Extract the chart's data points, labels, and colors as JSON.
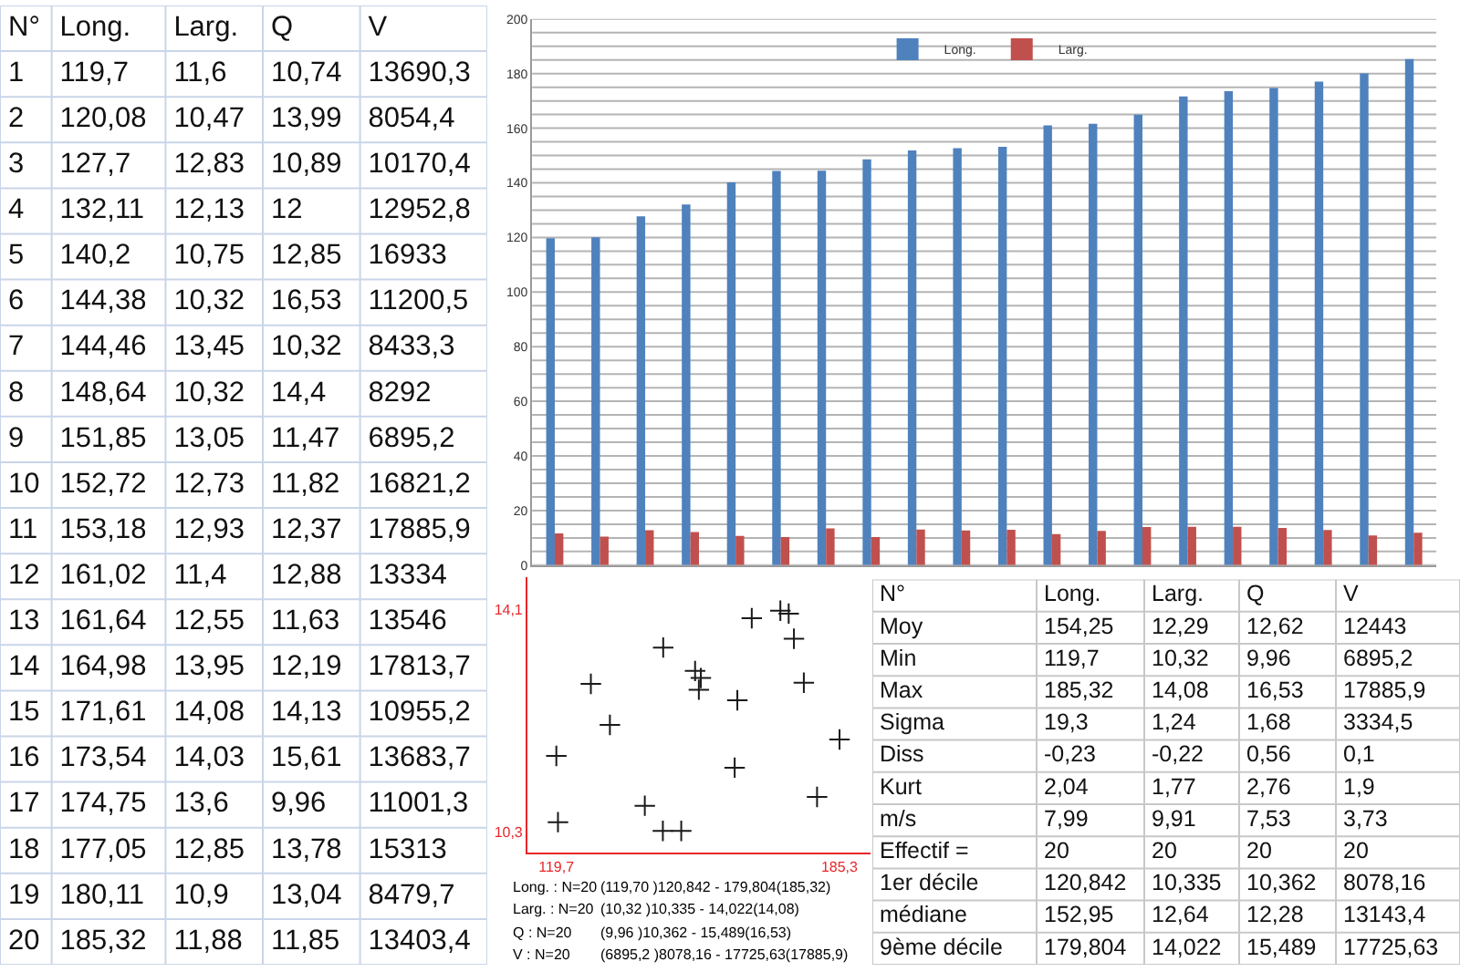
{
  "chart_data": [
    {
      "type": "heatmap",
      "ylabel": "N°",
      "categories": [
        "Long.",
        "Larg.",
        "Q",
        "V"
      ],
      "y_categories": [
        "1",
        "2",
        "3",
        "4",
        "5",
        "6",
        "7",
        "8",
        "9",
        "10",
        "11",
        "12",
        "13",
        "14",
        "15",
        "16",
        "17",
        "18",
        "19",
        "20"
      ],
      "cells": [
        [
          119.7,
          11.6,
          10.74,
          13690.3
        ],
        [
          120.08,
          10.47,
          13.99,
          8054.4
        ],
        [
          127.7,
          12.83,
          10.89,
          10170.4
        ],
        [
          132.11,
          12.13,
          12,
          12952.8
        ],
        [
          140.2,
          10.75,
          12.85,
          16933
        ],
        [
          144.38,
          10.32,
          16.53,
          11200.5
        ],
        [
          144.46,
          13.45,
          10.32,
          8433.3
        ],
        [
          148.64,
          10.32,
          14.4,
          8292
        ],
        [
          151.85,
          13.05,
          11.47,
          6895.2
        ],
        [
          152.72,
          12.73,
          11.82,
          16821.2
        ],
        [
          153.18,
          12.93,
          12.37,
          17885.9
        ],
        [
          161.02,
          11.4,
          12.88,
          13334
        ],
        [
          161.64,
          12.55,
          11.63,
          13546
        ],
        [
          164.98,
          13.95,
          12.19,
          17813.7
        ],
        [
          171.61,
          14.08,
          14.13,
          10955.2
        ],
        [
          173.54,
          14.03,
          15.61,
          13683.7
        ],
        [
          174.75,
          13.6,
          9.96,
          11001.3
        ],
        [
          177.05,
          12.85,
          13.78,
          15313
        ],
        [
          180.11,
          10.9,
          13.04,
          8479.7
        ],
        [
          185.32,
          11.88,
          11.85,
          13403.4
        ]
      ],
      "cell_labels": [
        [
          "119,7",
          "11,6",
          "10,74",
          "13690,3"
        ],
        [
          "120,08",
          "10,47",
          "13,99",
          "8054,4"
        ],
        [
          "127,7",
          "12,83",
          "10,89",
          "10170,4"
        ],
        [
          "132,11",
          "12,13",
          "12",
          "12952,8"
        ],
        [
          "140,2",
          "10,75",
          "12,85",
          "16933"
        ],
        [
          "144,38",
          "10,32",
          "16,53",
          "11200,5"
        ],
        [
          "144,46",
          "13,45",
          "10,32",
          "8433,3"
        ],
        [
          "148,64",
          "10,32",
          "14,4",
          "8292"
        ],
        [
          "151,85",
          "13,05",
          "11,47",
          "6895,2"
        ],
        [
          "152,72",
          "12,73",
          "11,82",
          "16821,2"
        ],
        [
          "153,18",
          "12,93",
          "12,37",
          "17885,9"
        ],
        [
          "161,02",
          "11,4",
          "12,88",
          "13334"
        ],
        [
          "161,64",
          "12,55",
          "11,63",
          "13546"
        ],
        [
          "164,98",
          "13,95",
          "12,19",
          "17813,7"
        ],
        [
          "171,61",
          "14,08",
          "14,13",
          "10955,2"
        ],
        [
          "173,54",
          "14,03",
          "15,61",
          "13683,7"
        ],
        [
          "174,75",
          "13,6",
          "9,96",
          "11001,3"
        ],
        [
          "177,05",
          "12,85",
          "13,78",
          "15313"
        ],
        [
          "180,11",
          "10,9",
          "13,04",
          "8479,7"
        ],
        [
          "185,32",
          "11,88",
          "11,85",
          "13403,4"
        ]
      ]
    },
    {
      "type": "bar",
      "categories": [
        null,
        null,
        null,
        null,
        null,
        null,
        null,
        null,
        null,
        null,
        null,
        null,
        null,
        null,
        null,
        null,
        null,
        null,
        null,
        null
      ],
      "series": [
        {
          "name": "Long.",
          "color": "#4f81bd",
          "values": [
            119.7,
            120.08,
            127.7,
            132.11,
            140.2,
            144.38,
            144.46,
            148.64,
            151.85,
            152.72,
            153.18,
            161.02,
            161.64,
            164.98,
            171.61,
            173.54,
            174.75,
            177.05,
            180.11,
            185.32
          ]
        },
        {
          "name": "Larg.",
          "color": "#c0504d",
          "values": [
            11.6,
            10.47,
            12.83,
            12.13,
            10.75,
            10.32,
            13.45,
            10.32,
            13.05,
            12.73,
            12.93,
            11.4,
            12.55,
            13.95,
            14.08,
            14.03,
            13.6,
            12.85,
            10.9,
            11.88
          ]
        }
      ],
      "ylim": [
        0,
        200
      ],
      "yticks": [
        0,
        {
          "value": 5,
          "label": null
        },
        {
          "value": 10,
          "label": null
        },
        {
          "value": 15,
          "label": null
        },
        20,
        {
          "value": 25,
          "label": null
        },
        {
          "value": 30,
          "label": null
        },
        {
          "value": 35,
          "label": null
        },
        40,
        {
          "value": 45,
          "label": null
        },
        {
          "value": 50,
          "label": null
        },
        {
          "value": 55,
          "label": null
        },
        60,
        {
          "value": 65,
          "label": null
        },
        {
          "value": 70,
          "label": null
        },
        {
          "value": 75,
          "label": null
        },
        80,
        {
          "value": 85,
          "label": null
        },
        {
          "value": 90,
          "label": null
        },
        {
          "value": 95,
          "label": null
        },
        100,
        {
          "value": 105,
          "label": null
        },
        {
          "value": 110,
          "label": null
        },
        {
          "value": 115,
          "label": null
        },
        120,
        {
          "value": 125,
          "label": null
        },
        {
          "value": 130,
          "label": null
        },
        {
          "value": 135,
          "label": null
        },
        140,
        {
          "value": 145,
          "label": null
        },
        {
          "value": 150,
          "label": null
        },
        {
          "value": 155,
          "label": null
        },
        160,
        {
          "value": 165,
          "label": null
        },
        {
          "value": 170,
          "label": null
        },
        {
          "value": 175,
          "label": null
        },
        180,
        {
          "value": 185,
          "label": null
        },
        {
          "value": 190,
          "label": null
        },
        {
          "value": 195,
          "label": null
        },
        200
      ],
      "grid": "y",
      "legend": "top"
    },
    {
      "type": "scatter",
      "x": [
        119.7,
        120.08,
        127.7,
        132.11,
        140.2,
        144.38,
        144.46,
        148.64,
        151.85,
        152.72,
        153.18,
        161.02,
        161.64,
        164.98,
        171.61,
        173.54,
        174.75,
        177.05,
        180.11,
        185.32
      ],
      "values": [
        11.6,
        10.47,
        12.83,
        12.13,
        10.75,
        10.32,
        13.45,
        10.32,
        13.05,
        12.73,
        12.93,
        11.4,
        12.55,
        13.95,
        14.08,
        14.03,
        13.6,
        12.85,
        10.9,
        11.88
      ],
      "color": "#1a1a1a",
      "marker": "cross",
      "xlim": [
        113,
        192.5
      ],
      "ylim": [
        9.95,
        14.65
      ],
      "xticks": [
        {
          "value": 119.7,
          "label": "119,7"
        },
        {
          "value": 185.3,
          "label": "185,3"
        }
      ],
      "yticks": [
        {
          "value": 10.3,
          "label": "10,3"
        },
        {
          "value": 14.1,
          "label": "14,1"
        }
      ],
      "annotations": [
        "Long. : N=20",
        "(119,70 )120,842 - 179,804(185,32)",
        "Larg. : N=20",
        "(10,32 )10,335 - 14,022(14,08)",
        "Q : N=20",
        "(9,96 )10,362 - 15,489(16,53)",
        "V : N=20",
        "(6895,2 )8078,16 - 17725,63(17885,9)"
      ]
    },
    {
      "type": "other",
      "ylabel": "N°",
      "categories": [
        "Long.",
        "Larg.",
        "Q",
        "V"
      ],
      "y_categories": [
        "Moy",
        "Min",
        "Max",
        "Sigma",
        "Diss",
        "Kurt",
        "m/s",
        "Effectif =",
        "1er décile",
        "médiane",
        "9ème décile"
      ],
      "cell_labels": [
        [
          "154,25",
          "12,29",
          "12,62",
          "12443"
        ],
        [
          "119,7",
          "10,32",
          "9,96",
          "6895,2"
        ],
        [
          "185,32",
          "14,08",
          "16,53",
          "17885,9"
        ],
        [
          "19,3",
          "1,24",
          "1,68",
          "3334,5"
        ],
        [
          "-0,23",
          "-0,22",
          "0,56",
          "0,1"
        ],
        [
          "2,04",
          "1,77",
          "2,76",
          "1,9"
        ],
        [
          "7,99",
          "9,91",
          "7,53",
          "3,73"
        ],
        [
          "20",
          "20",
          "20",
          "20"
        ],
        [
          "120,842",
          "10,335",
          "10,362",
          "8078,16"
        ],
        [
          "152,95",
          "12,64",
          "12,28",
          "13143,4"
        ],
        [
          "179,804",
          "14,022",
          "15,489",
          "17725,63"
        ]
      ]
    }
  ]
}
